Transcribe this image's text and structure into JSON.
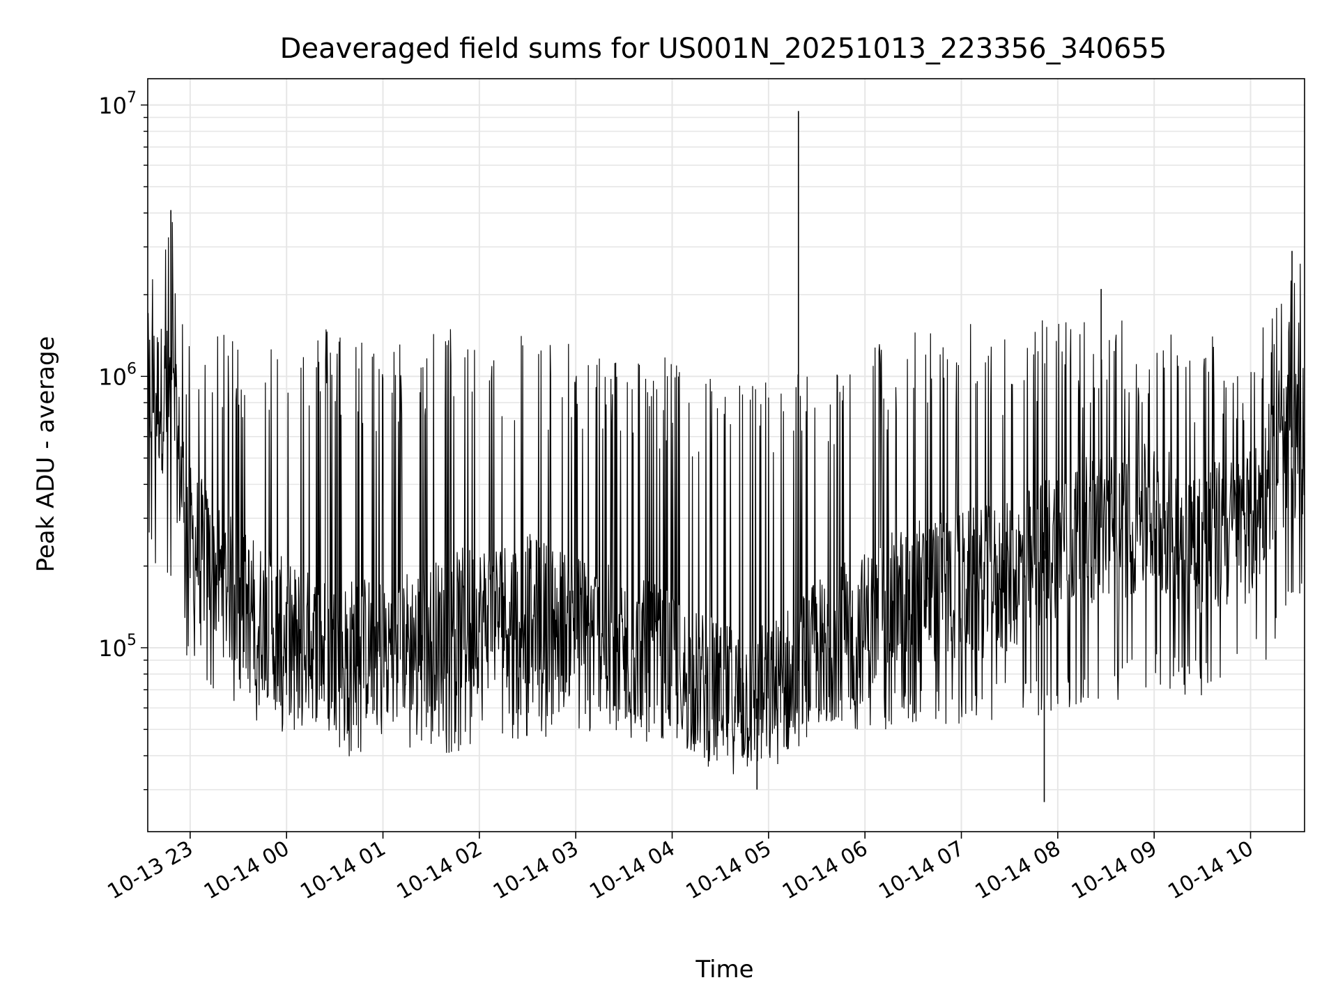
{
  "chart_data": {
    "type": "line",
    "title": "Deaveraged field sums for US001N_20251013_223356_340655",
    "xlabel": "Time",
    "ylabel": "Peak ADU - average",
    "y_scale": "log",
    "ylim": [
      21000,
      12500000
    ],
    "xlim_hours": [
      22.56,
      34.56
    ],
    "grid": true,
    "grid_minor": true,
    "series_color": "#000000",
    "grid_color": "#e6e6e6",
    "x_ticks": [
      {
        "label": "10-13 23",
        "hour": 23
      },
      {
        "label": "10-14 00",
        "hour": 24
      },
      {
        "label": "10-14 01",
        "hour": 25
      },
      {
        "label": "10-14 02",
        "hour": 26
      },
      {
        "label": "10-14 03",
        "hour": 27
      },
      {
        "label": "10-14 04",
        "hour": 28
      },
      {
        "label": "10-14 05",
        "hour": 29
      },
      {
        "label": "10-14 06",
        "hour": 30
      },
      {
        "label": "10-14 07",
        "hour": 31
      },
      {
        "label": "10-14 08",
        "hour": 32
      },
      {
        "label": "10-14 09",
        "hour": 33
      },
      {
        "label": "10-14 10",
        "hour": 34
      }
    ],
    "y_ticks": [
      {
        "base": "10",
        "exp": "5",
        "value": 100000
      },
      {
        "base": "10",
        "exp": "6",
        "value": 1000000
      },
      {
        "base": "10",
        "exp": "7",
        "value": 10000000
      }
    ],
    "series": [
      {
        "name": "Peak ADU - average",
        "trend": [
          {
            "hour": 22.56,
            "min": 200000,
            "base": 900000,
            "max": 3000000
          },
          {
            "hour": 22.8,
            "min": 150000,
            "base": 800000,
            "max": 4200000
          },
          {
            "hour": 23.0,
            "min": 80000,
            "base": 250000,
            "max": 1300000
          },
          {
            "hour": 23.5,
            "min": 60000,
            "base": 150000,
            "max": 1500000
          },
          {
            "hour": 24.0,
            "min": 45000,
            "base": 110000,
            "max": 1400000
          },
          {
            "hour": 24.5,
            "min": 38000,
            "base": 95000,
            "max": 1600000
          },
          {
            "hour": 25.0,
            "min": 42000,
            "base": 100000,
            "max": 1300000
          },
          {
            "hour": 25.5,
            "min": 40000,
            "base": 110000,
            "max": 1500000
          },
          {
            "hour": 26.0,
            "min": 42000,
            "base": 130000,
            "max": 1600000
          },
          {
            "hour": 26.5,
            "min": 45000,
            "base": 140000,
            "max": 1500000
          },
          {
            "hour": 27.0,
            "min": 45000,
            "base": 120000,
            "max": 1300000
          },
          {
            "hour": 27.5,
            "min": 45000,
            "base": 100000,
            "max": 1200000
          },
          {
            "hour": 28.0,
            "min": 42000,
            "base": 85000,
            "max": 1200000
          },
          {
            "hour": 28.5,
            "min": 38000,
            "base": 65000,
            "max": 1000000
          },
          {
            "hour": 29.0,
            "min": 38000,
            "base": 65000,
            "max": 1000000
          },
          {
            "hour": 29.5,
            "min": 45000,
            "base": 95000,
            "max": 1100000
          },
          {
            "hour": 30.0,
            "min": 48000,
            "base": 120000,
            "max": 1300000
          },
          {
            "hour": 30.5,
            "min": 50000,
            "base": 160000,
            "max": 1500000
          },
          {
            "hour": 31.0,
            "min": 50000,
            "base": 170000,
            "max": 1600000
          },
          {
            "hour": 31.5,
            "min": 55000,
            "base": 180000,
            "max": 1500000
          },
          {
            "hour": 32.0,
            "min": 55000,
            "base": 250000,
            "max": 1700000
          },
          {
            "hour": 32.5,
            "min": 60000,
            "base": 280000,
            "max": 1700000
          },
          {
            "hour": 33.0,
            "min": 70000,
            "base": 300000,
            "max": 1500000
          },
          {
            "hour": 33.5,
            "min": 65000,
            "base": 250000,
            "max": 1500000
          },
          {
            "hour": 34.0,
            "min": 80000,
            "base": 280000,
            "max": 1400000
          },
          {
            "hour": 34.3,
            "min": 100000,
            "base": 500000,
            "max": 2000000
          },
          {
            "hour": 34.56,
            "min": 150000,
            "base": 600000,
            "max": 2800000
          }
        ],
        "events": [
          {
            "hour": 22.8,
            "value": 4100000
          },
          {
            "hour": 29.31,
            "value": 9500000
          },
          {
            "hour": 31.86,
            "value": 27000
          },
          {
            "hour": 28.88,
            "value": 30000
          },
          {
            "hour": 32.45,
            "value": 2100000
          },
          {
            "hour": 34.43,
            "value": 2900000
          }
        ]
      }
    ]
  }
}
